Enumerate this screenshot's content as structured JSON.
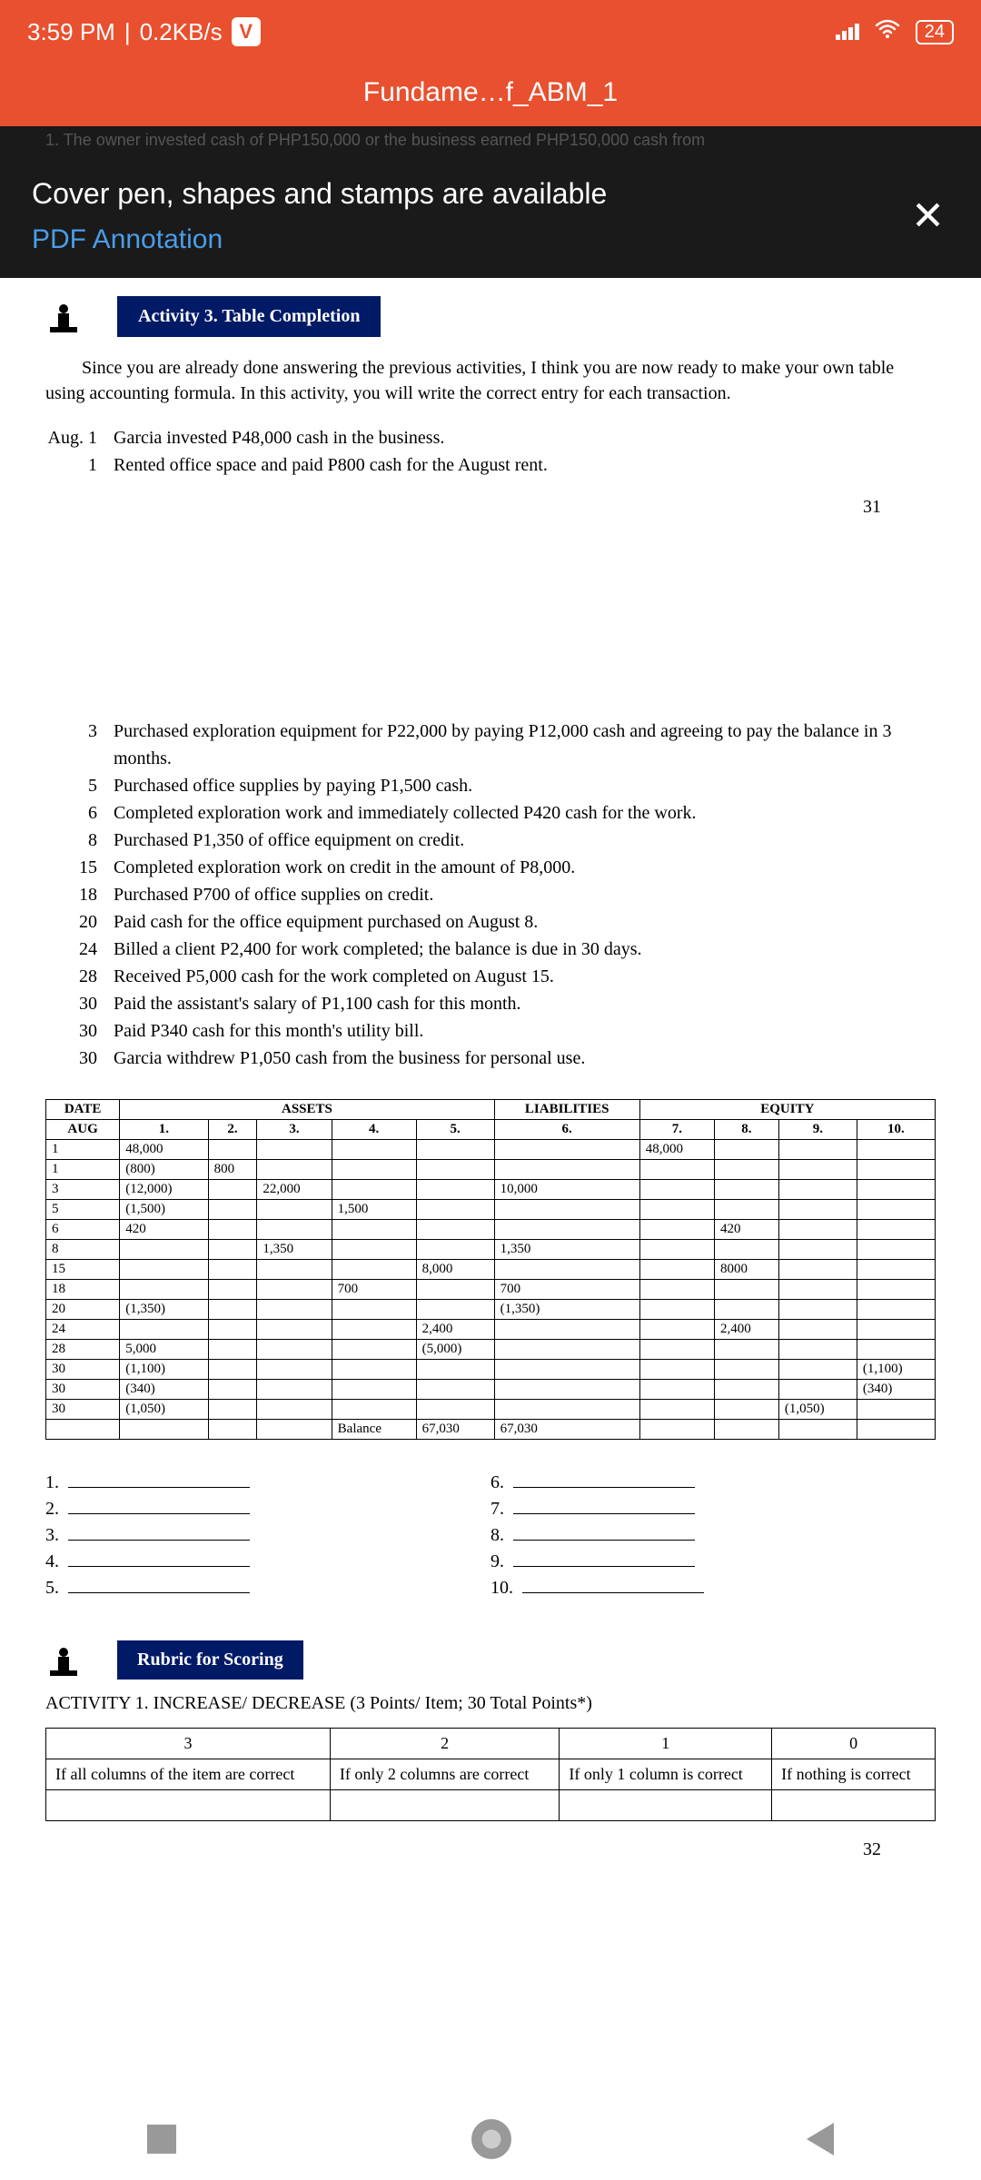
{
  "status": {
    "time": "3:59 PM",
    "speed": "0.2KB/s",
    "battery": "24"
  },
  "header": {
    "title": "Fundame…f_ABM_1"
  },
  "banner": {
    "title": "Cover pen, shapes and stamps are available",
    "link": "PDF Annotation",
    "close": "✕"
  },
  "activity": {
    "label": "Activity 3. Table Completion",
    "intro": "Since you are already done answering the previous activities, I think you are now ready to make your own table using accounting formula. In this activity, you will write the correct entry for each transaction.",
    "top_trans": [
      {
        "d": "Aug. 1",
        "t": "Garcia invested P48,000 cash in the business."
      },
      {
        "d": "1",
        "t": "Rented office space and paid P800 cash for the August rent."
      }
    ],
    "pg1": "31",
    "trans": [
      {
        "d": "3",
        "t": "Purchased exploration equipment for P22,000 by paying P12,000 cash and agreeing to pay the balance in 3 months."
      },
      {
        "d": "5",
        "t": "Purchased office supplies by paying P1,500 cash."
      },
      {
        "d": "6",
        "t": "Completed exploration work and immediately collected P420 cash for the work."
      },
      {
        "d": "8",
        "t": "Purchased P1,350 of office equipment on credit."
      },
      {
        "d": "15",
        "t": "Completed exploration work on credit in the amount of P8,000."
      },
      {
        "d": "18",
        "t": "Purchased P700 of office supplies on credit."
      },
      {
        "d": "20",
        "t": "Paid cash for the office equipment purchased on August 8."
      },
      {
        "d": "24",
        "t": "Billed a client P2,400 for work completed; the balance is due in 30 days."
      },
      {
        "d": "28",
        "t": "Received P5,000 cash for the work completed on August 15."
      },
      {
        "d": "30",
        "t": "Paid the assistant's salary of P1,100 cash for this month."
      },
      {
        "d": "30",
        "t": "Paid P340 cash for this month's utility bill."
      },
      {
        "d": "30",
        "t": "Garcia withdrew P1,050 cash from the business for personal use."
      }
    ]
  },
  "table": {
    "headers": {
      "date": "DATE",
      "assets": "ASSETS",
      "liab": "LIABILITIES",
      "equity": "EQUITY"
    },
    "cols": [
      "AUG",
      "1.",
      "2.",
      "3.",
      "4.",
      "5.",
      "6.",
      "7.",
      "8.",
      "9.",
      "10."
    ],
    "rows": [
      [
        "1",
        "48,000",
        "",
        "",
        "",
        "",
        "",
        "48,000",
        "",
        "",
        ""
      ],
      [
        "1",
        "(800)",
        "800",
        "",
        "",
        "",
        "",
        "",
        "",
        "",
        ""
      ],
      [
        "3",
        "(12,000)",
        "",
        "22,000",
        "",
        "",
        "10,000",
        "",
        "",
        "",
        ""
      ],
      [
        "5",
        "(1,500)",
        "",
        "",
        "1,500",
        "",
        "",
        "",
        "",
        "",
        ""
      ],
      [
        "6",
        "420",
        "",
        "",
        "",
        "",
        "",
        "",
        "420",
        "",
        ""
      ],
      [
        "8",
        "",
        "",
        "1,350",
        "",
        "",
        "1,350",
        "",
        "",
        "",
        ""
      ],
      [
        "15",
        "",
        "",
        "",
        "",
        "8,000",
        "",
        "",
        "8000",
        "",
        ""
      ],
      [
        "18",
        "",
        "",
        "",
        "700",
        "",
        "700",
        "",
        "",
        "",
        ""
      ],
      [
        "20",
        "(1,350)",
        "",
        "",
        "",
        "",
        "(1,350)",
        "",
        "",
        "",
        ""
      ],
      [
        "24",
        "",
        "",
        "",
        "",
        "2,400",
        "",
        "",
        "2,400",
        "",
        ""
      ],
      [
        "28",
        "5,000",
        "",
        "",
        "",
        "(5,000)",
        "",
        "",
        "",
        "",
        ""
      ],
      [
        "30",
        "(1,100)",
        "",
        "",
        "",
        "",
        "",
        "",
        "",
        "",
        "(1,100)"
      ],
      [
        "30",
        "(340)",
        "",
        "",
        "",
        "",
        "",
        "",
        "",
        "",
        "(340)"
      ],
      [
        "30",
        "(1,050)",
        "",
        "",
        "",
        "",
        "",
        "",
        "",
        "(1,050)",
        ""
      ],
      [
        "",
        "",
        "",
        "",
        "Balance",
        "67,030",
        "67,030",
        "",
        "",
        "",
        ""
      ]
    ]
  },
  "blanks": {
    "left": [
      "1.",
      "2.",
      "3.",
      "4.",
      "5."
    ],
    "right": [
      "6.",
      "7.",
      "8.",
      "9.",
      "10."
    ]
  },
  "rubric": {
    "label": "Rubric for Scoring",
    "title": "ACTIVITY 1.  INCREASE/ DECREASE (3 Points/ Item; 30 Total Points*)",
    "cols": [
      "3",
      "2",
      "1",
      "0"
    ],
    "cells": [
      "If all columns of the item are correct",
      "If only 2 columns are correct",
      "If only 1 column is correct",
      "If nothing is correct"
    ]
  },
  "pg2": "32"
}
